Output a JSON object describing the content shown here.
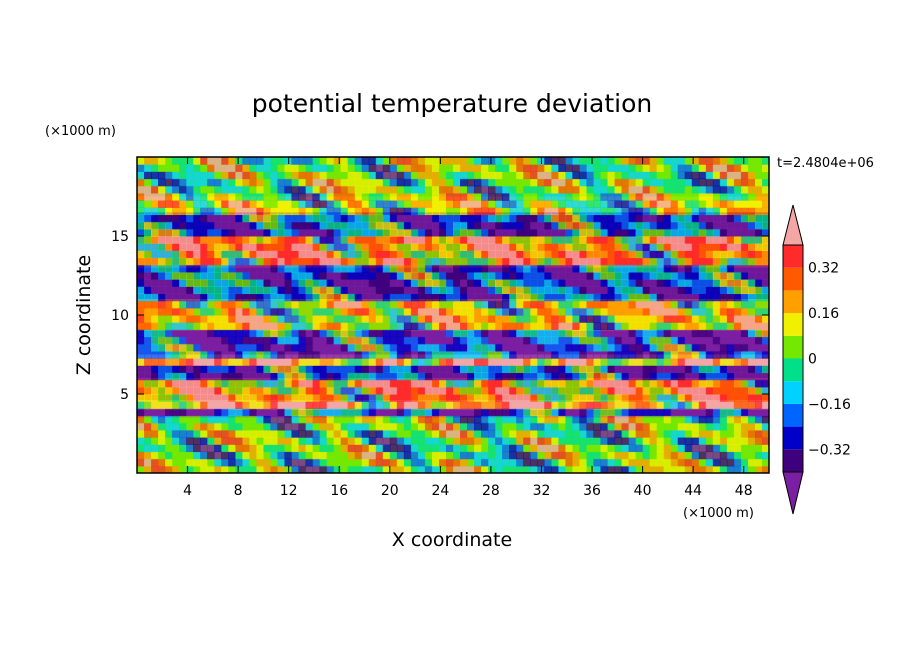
{
  "chart_data": {
    "type": "heatmap",
    "title": "potential temperature deviation",
    "xlabel": "X coordinate",
    "ylabel": "Z coordinate",
    "x_units": "(×1000 m)",
    "y_units": "(×1000 m)",
    "time_label": "t=2.4804e+06",
    "xlim": [
      0,
      50
    ],
    "ylim": [
      0,
      20
    ],
    "x_ticks": [
      4,
      8,
      12,
      16,
      20,
      24,
      28,
      32,
      36,
      40,
      44,
      48
    ],
    "y_ticks": [
      5,
      10,
      15
    ],
    "colorbar": {
      "levels": [
        -0.4,
        -0.32,
        -0.24,
        -0.16,
        -0.08,
        0,
        0.08,
        0.16,
        0.24,
        0.32,
        0.4
      ],
      "tick_labels": [
        "0.32",
        "0.16",
        "0",
        "−0.16",
        "−0.32"
      ],
      "tick_values": [
        0.32,
        0.16,
        0,
        -0.16,
        -0.32
      ],
      "under_color": "#7b1fa2",
      "over_color": "#f4a6a6",
      "colors": [
        "#3f007d",
        "#0000c8",
        "#0064ff",
        "#00d2ff",
        "#00e08a",
        "#74e800",
        "#f0f000",
        "#ffa000",
        "#ff5a00",
        "#ff2a2a"
      ]
    },
    "bands": [
      {
        "z": [
          17.5,
          20
        ],
        "value": 0.05
      },
      {
        "z": [
          16.5,
          17.5
        ],
        "value": 0.1
      },
      {
        "z": [
          15,
          16.5
        ],
        "value": -0.35
      },
      {
        "z": [
          13,
          15
        ],
        "value": 0.35
      },
      {
        "z": [
          11,
          13
        ],
        "value": -0.38
      },
      {
        "z": [
          9,
          11
        ],
        "value": 0.2
      },
      {
        "z": [
          7.5,
          9
        ],
        "value": -0.42
      },
      {
        "z": [
          6.8,
          7.5
        ],
        "value": 0.42
      },
      {
        "z": [
          6,
          6.8
        ],
        "value": -0.4
      },
      {
        "z": [
          4.6,
          6
        ],
        "value": 0.33
      },
      {
        "z": [
          4,
          4.6
        ],
        "value": 0.45
      },
      {
        "z": [
          3.5,
          4
        ],
        "value": -0.42
      },
      {
        "z": [
          0,
          3.5
        ],
        "value": 0.0
      }
    ]
  }
}
